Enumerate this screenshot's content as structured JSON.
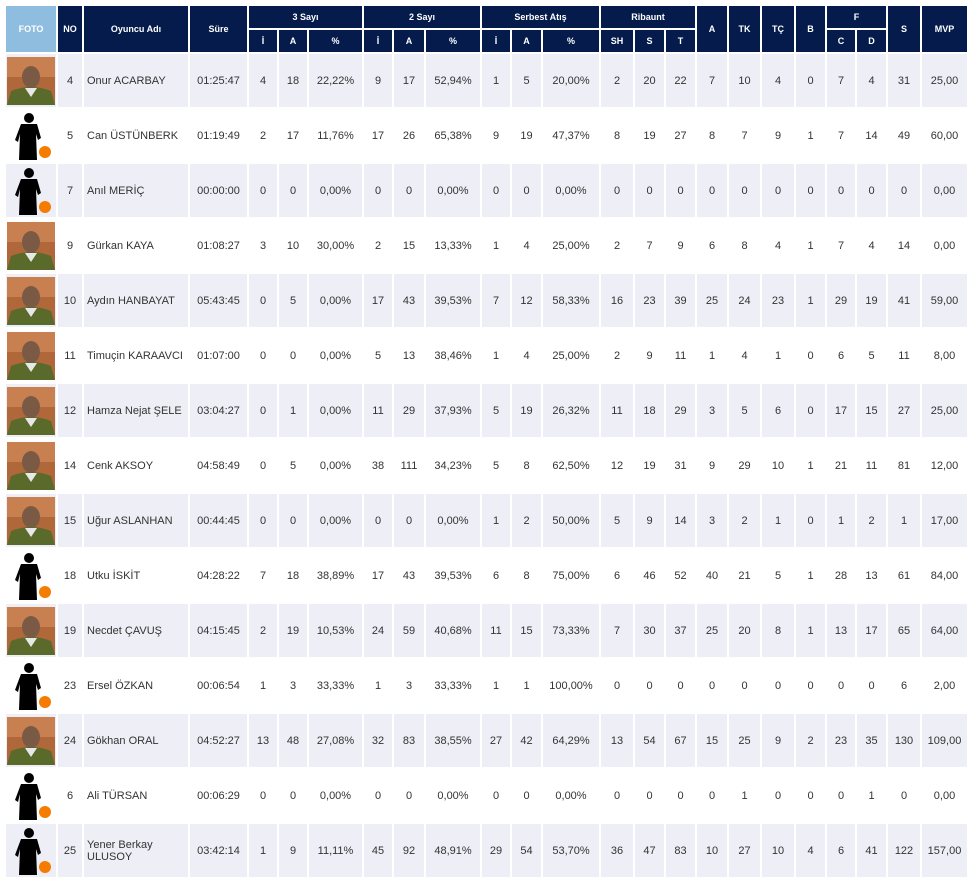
{
  "header": {
    "foto": "FOTO",
    "no": "NO",
    "name": "Oyuncu Adı",
    "time": "Süre",
    "three": "3 Sayı",
    "two": "2 Sayı",
    "ft": "Serbest Atış",
    "reb": "Ribaunt",
    "a": "A",
    "tk": "TK",
    "tc": "TÇ",
    "b": "B",
    "f": "F",
    "s": "S",
    "mvp": "MVP",
    "sub": {
      "i": "İ",
      "a": "A",
      "p": "%",
      "sh": "SH",
      "s": "S",
      "t": "T",
      "c": "C",
      "d": "D"
    }
  },
  "colors": {
    "header": "#041b4c",
    "foto_header": "#8fbde0",
    "row_alt": "#eeeef6"
  },
  "players": [
    {
      "photo": "player-photo",
      "no": "4",
      "name": "Onur ACARBAY",
      "time": "01:25:47",
      "s": [
        "4",
        "18",
        "22,22%",
        "9",
        "17",
        "52,94%",
        "1",
        "5",
        "20,00%",
        "2",
        "20",
        "22",
        "7",
        "10",
        "4",
        "0",
        "7",
        "4",
        "31",
        "25,00"
      ]
    },
    {
      "photo": "silhouette",
      "no": "5",
      "name": "Can ÜSTÜNBERK",
      "time": "01:19:49",
      "s": [
        "2",
        "17",
        "11,76%",
        "17",
        "26",
        "65,38%",
        "9",
        "19",
        "47,37%",
        "8",
        "19",
        "27",
        "8",
        "7",
        "9",
        "1",
        "7",
        "14",
        "49",
        "60,00"
      ]
    },
    {
      "photo": "silhouette",
      "no": "7",
      "name": "Anıl MERİÇ",
      "time": "00:00:00",
      "s": [
        "0",
        "0",
        "0,00%",
        "0",
        "0",
        "0,00%",
        "0",
        "0",
        "0,00%",
        "0",
        "0",
        "0",
        "0",
        "0",
        "0",
        "0",
        "0",
        "0",
        "0",
        "0,00"
      ]
    },
    {
      "photo": "player-photo",
      "no": "9",
      "name": "Gürkan KAYA",
      "time": "01:08:27",
      "s": [
        "3",
        "10",
        "30,00%",
        "2",
        "15",
        "13,33%",
        "1",
        "4",
        "25,00%",
        "2",
        "7",
        "9",
        "6",
        "8",
        "4",
        "1",
        "7",
        "4",
        "14",
        "0,00"
      ]
    },
    {
      "photo": "player-photo",
      "no": "10",
      "name": "Aydın HANBAYAT",
      "time": "05:43:45",
      "s": [
        "0",
        "5",
        "0,00%",
        "17",
        "43",
        "39,53%",
        "7",
        "12",
        "58,33%",
        "16",
        "23",
        "39",
        "25",
        "24",
        "23",
        "1",
        "29",
        "19",
        "41",
        "59,00"
      ]
    },
    {
      "photo": "player-photo",
      "no": "11",
      "name": "Timuçin KARAAVCI",
      "time": "01:07:00",
      "s": [
        "0",
        "0",
        "0,00%",
        "5",
        "13",
        "38,46%",
        "1",
        "4",
        "25,00%",
        "2",
        "9",
        "11",
        "1",
        "4",
        "1",
        "0",
        "6",
        "5",
        "11",
        "8,00"
      ]
    },
    {
      "photo": "player-photo",
      "no": "12",
      "name": "Hamza Nejat ŞELE",
      "time": "03:04:27",
      "s": [
        "0",
        "1",
        "0,00%",
        "11",
        "29",
        "37,93%",
        "5",
        "19",
        "26,32%",
        "11",
        "18",
        "29",
        "3",
        "5",
        "6",
        "0",
        "17",
        "15",
        "27",
        "25,00"
      ]
    },
    {
      "photo": "player-photo",
      "no": "14",
      "name": "Cenk AKSOY",
      "time": "04:58:49",
      "s": [
        "0",
        "5",
        "0,00%",
        "38",
        "111",
        "34,23%",
        "5",
        "8",
        "62,50%",
        "12",
        "19",
        "31",
        "9",
        "29",
        "10",
        "1",
        "21",
        "11",
        "81",
        "12,00"
      ]
    },
    {
      "photo": "player-photo",
      "no": "15",
      "name": "Uğur ASLANHAN",
      "time": "00:44:45",
      "s": [
        "0",
        "0",
        "0,00%",
        "0",
        "0",
        "0,00%",
        "1",
        "2",
        "50,00%",
        "5",
        "9",
        "14",
        "3",
        "2",
        "1",
        "0",
        "1",
        "2",
        "1",
        "17,00"
      ]
    },
    {
      "photo": "silhouette",
      "no": "18",
      "name": "Utku İSKİT",
      "time": "04:28:22",
      "s": [
        "7",
        "18",
        "38,89%",
        "17",
        "43",
        "39,53%",
        "6",
        "8",
        "75,00%",
        "6",
        "46",
        "52",
        "40",
        "21",
        "5",
        "1",
        "28",
        "13",
        "61",
        "84,00"
      ]
    },
    {
      "photo": "player-photo",
      "no": "19",
      "name": "Necdet ÇAVUŞ",
      "time": "04:15:45",
      "s": [
        "2",
        "19",
        "10,53%",
        "24",
        "59",
        "40,68%",
        "11",
        "15",
        "73,33%",
        "7",
        "30",
        "37",
        "25",
        "20",
        "8",
        "1",
        "13",
        "17",
        "65",
        "64,00"
      ]
    },
    {
      "photo": "silhouette",
      "no": "23",
      "name": "Ersel ÖZKAN",
      "time": "00:06:54",
      "s": [
        "1",
        "3",
        "33,33%",
        "1",
        "3",
        "33,33%",
        "1",
        "1",
        "100,00%",
        "0",
        "0",
        "0",
        "0",
        "0",
        "0",
        "0",
        "0",
        "0",
        "6",
        "2,00"
      ]
    },
    {
      "photo": "player-photo",
      "no": "24",
      "name": "Gökhan ORAL",
      "time": "04:52:27",
      "s": [
        "13",
        "48",
        "27,08%",
        "32",
        "83",
        "38,55%",
        "27",
        "42",
        "64,29%",
        "13",
        "54",
        "67",
        "15",
        "25",
        "9",
        "2",
        "23",
        "35",
        "130",
        "109,00"
      ]
    },
    {
      "photo": "silhouette",
      "no": "6",
      "name": "Ali TÜRSAN",
      "time": "00:06:29",
      "s": [
        "0",
        "0",
        "0,00%",
        "0",
        "0",
        "0,00%",
        "0",
        "0",
        "0,00%",
        "0",
        "0",
        "0",
        "0",
        "1",
        "0",
        "0",
        "0",
        "1",
        "0",
        "0,00"
      ]
    },
    {
      "photo": "silhouette",
      "no": "25",
      "name": "Yener Berkay ULUSOY",
      "time": "03:42:14",
      "s": [
        "1",
        "9",
        "11,11%",
        "45",
        "92",
        "48,91%",
        "29",
        "54",
        "53,70%",
        "36",
        "47",
        "83",
        "10",
        "27",
        "10",
        "4",
        "6",
        "41",
        "122",
        "157,00"
      ]
    }
  ]
}
